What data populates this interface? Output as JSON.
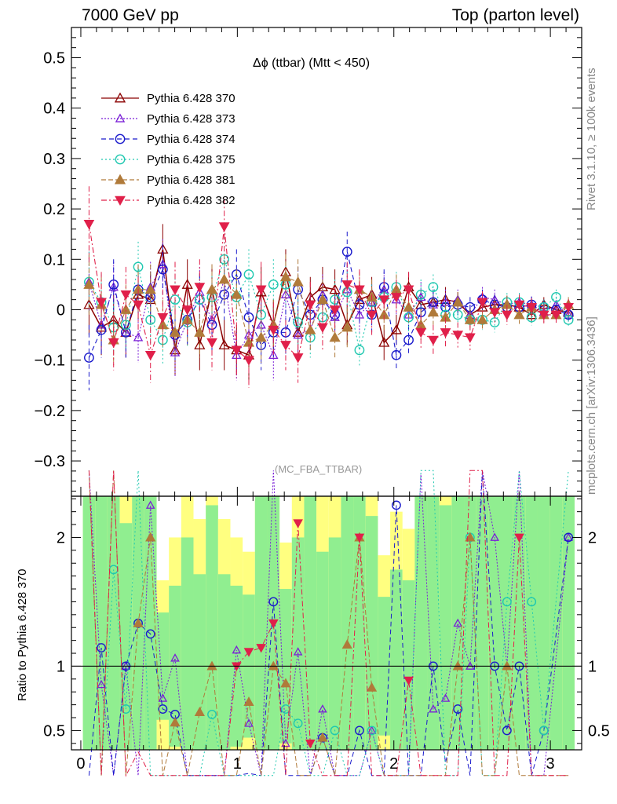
{
  "header": {
    "left": "7000 GeV pp",
    "right": "Top (parton level)"
  },
  "side_labels": {
    "rivet": "Rivet 3.1.10, ≥ 100k events",
    "mcplots": "mcplots.cern.ch [arXiv:1306.3436]"
  },
  "plot_title": "Δϕ (ttbar) (Mtt < 450)",
  "analysis_tag": "(MC_FBA_TTBAR)",
  "ratio_ylabel": "Ratio to Pythia 6.428 370",
  "chart_data": [
    {
      "type": "line",
      "panel": "main",
      "xlim": [
        -0.06,
        3.2
      ],
      "ylim": [
        -0.37,
        0.56
      ],
      "x_ticks": [
        0,
        1,
        2,
        3
      ],
      "y_ticks": [
        -0.3,
        -0.2,
        -0.1,
        0,
        0.1,
        0.2,
        0.3,
        0.4,
        0.5
      ],
      "y_tick_labels": [
        "−0.3",
        "−0.2",
        "−0.1",
        "0",
        "0.1",
        "0.2",
        "0.3",
        "0.4",
        "0.5"
      ],
      "legend_position": "top-left",
      "x": [
        0.0524,
        0.1309,
        0.2094,
        0.288,
        0.3665,
        0.4451,
        0.5236,
        0.6021,
        0.6807,
        0.7592,
        0.8378,
        0.9163,
        0.9948,
        1.0734,
        1.1519,
        1.2305,
        1.309,
        1.3875,
        1.4661,
        1.5446,
        1.6232,
        1.7017,
        1.7802,
        1.8588,
        1.9373,
        2.0159,
        2.0944,
        2.1729,
        2.2515,
        2.33,
        2.4086,
        2.4871,
        2.5656,
        2.6442,
        2.7227,
        2.8013,
        2.8798,
        2.9583,
        3.0369,
        3.1154
      ],
      "series": [
        {
          "name": "Pythia 6.428 370",
          "color": "#8b0000",
          "marker": "triangle-open",
          "values": [
            0.01,
            -0.035,
            -0.02,
            -0.045,
            0.03,
            0.02,
            0.12,
            -0.08,
            0.05,
            -0.07,
            0.04,
            -0.07,
            -0.08,
            -0.09,
            0.035,
            -0.03,
            0.075,
            -0.045,
            0.025,
            0.045,
            0.04,
            -0.03,
            0.02,
            0.03,
            -0.065,
            -0.04,
            0.045,
            0.01,
            0.015,
            0.02,
            0.015,
            -0.01,
            0.005,
            0.01,
            0.01,
            0.005,
            -0.01,
            0.01,
            0.0,
            -0.005
          ],
          "errors": [
            0.06,
            0.055,
            0.05,
            0.05,
            0.05,
            0.05,
            0.05,
            0.05,
            0.05,
            0.05,
            0.05,
            0.05,
            0.05,
            0.05,
            0.05,
            0.05,
            0.045,
            0.045,
            0.04,
            0.04,
            0.04,
            0.04,
            0.035,
            0.035,
            0.035,
            0.03,
            0.03,
            0.03,
            0.025,
            0.025,
            0.02,
            0.02,
            0.02,
            0.02,
            0.018,
            0.018,
            0.016,
            0.015,
            0.015,
            0.015
          ]
        },
        {
          "name": "Pythia 6.428 373",
          "color": "#7a1fd6",
          "marker": "triangle-open-small",
          "values": [
            0.055,
            -0.03,
            0.045,
            -0.045,
            -0.055,
            0.045,
            0.09,
            -0.085,
            -0.02,
            0.035,
            -0.02,
            0.06,
            -0.09,
            -0.05,
            -0.03,
            -0.09,
            0.03,
            -0.05,
            -0.04,
            0.03,
            -0.015,
            0.04,
            -0.01,
            0.015,
            0.04,
            0.02,
            -0.01,
            0.025,
            0.01,
            0.015,
            0.02,
            -0.01,
            0.025,
            0.02,
            0.01,
            0.015,
            0.01,
            -0.005,
            0.01,
            -0.01
          ],
          "errors": [
            0.06,
            0.055,
            0.05,
            0.05,
            0.05,
            0.05,
            0.05,
            0.05,
            0.05,
            0.05,
            0.05,
            0.05,
            0.05,
            0.05,
            0.05,
            0.05,
            0.045,
            0.045,
            0.04,
            0.04,
            0.04,
            0.04,
            0.035,
            0.035,
            0.035,
            0.03,
            0.03,
            0.03,
            0.025,
            0.025,
            0.02,
            0.02,
            0.02,
            0.02,
            0.018,
            0.018,
            0.016,
            0.015,
            0.015,
            0.015
          ]
        },
        {
          "name": "Pythia 6.428 374",
          "color": "#1a1acc",
          "marker": "circle-open",
          "values": [
            -0.095,
            -0.04,
            0.05,
            -0.045,
            0.04,
            0.025,
            0.08,
            -0.05,
            -0.02,
            0.02,
            -0.03,
            0.03,
            0.07,
            -0.015,
            -0.07,
            -0.045,
            -0.045,
            0.04,
            -0.01,
            0.02,
            -0.01,
            0.115,
            0.01,
            -0.01,
            0.045,
            -0.09,
            -0.06,
            -0.005,
            0.015,
            0.005,
            0.01,
            0.005,
            0.02,
            0.01,
            0.005,
            0.005,
            0.01,
            0.005,
            0.0,
            -0.01
          ],
          "errors": [
            0.065,
            0.055,
            0.05,
            0.05,
            0.05,
            0.05,
            0.05,
            0.05,
            0.05,
            0.05,
            0.05,
            0.05,
            0.05,
            0.05,
            0.05,
            0.05,
            0.045,
            0.045,
            0.04,
            0.04,
            0.04,
            0.04,
            0.035,
            0.035,
            0.035,
            0.03,
            0.03,
            0.03,
            0.025,
            0.025,
            0.02,
            0.02,
            0.02,
            0.02,
            0.018,
            0.018,
            0.016,
            0.015,
            0.015,
            0.015
          ]
        },
        {
          "name": "Pythia 6.428 375",
          "color": "#20c8b0",
          "marker": "circle-open",
          "values": [
            0.055,
            0.015,
            -0.035,
            -0.03,
            0.085,
            -0.02,
            -0.06,
            0.02,
            -0.025,
            0.02,
            0.025,
            0.1,
            0.025,
            0.07,
            -0.01,
            0.05,
            0.05,
            -0.025,
            -0.055,
            -0.015,
            0.02,
            0.035,
            -0.08,
            0.015,
            0.025,
            0.045,
            -0.015,
            0.03,
            0.045,
            -0.01,
            -0.01,
            -0.02,
            -0.02,
            -0.025,
            0.015,
            0.015,
            -0.015,
            0.005,
            0.025,
            -0.02
          ],
          "errors": [
            0.06,
            0.055,
            0.05,
            0.05,
            0.05,
            0.05,
            0.05,
            0.05,
            0.05,
            0.05,
            0.05,
            0.05,
            0.05,
            0.05,
            0.05,
            0.05,
            0.045,
            0.045,
            0.04,
            0.04,
            0.04,
            0.04,
            0.035,
            0.035,
            0.035,
            0.03,
            0.03,
            0.03,
            0.025,
            0.025,
            0.02,
            0.02,
            0.02,
            0.02,
            0.018,
            0.018,
            0.016,
            0.015,
            0.015,
            0.015
          ]
        },
        {
          "name": "Pythia 6.428 381",
          "color": "#b07a3a",
          "marker": "triangle-filled",
          "values": [
            0.05,
            0.01,
            -0.06,
            0.0,
            0.04,
            0.04,
            -0.03,
            -0.045,
            -0.02,
            -0.045,
            0.04,
            0.06,
            0.03,
            -0.065,
            -0.055,
            -0.03,
            0.065,
            0.055,
            -0.04,
            0.02,
            -0.055,
            -0.035,
            0.04,
            0.025,
            -0.01,
            0.04,
            0.005,
            -0.03,
            -0.005,
            -0.015,
            0.015,
            -0.02,
            -0.02,
            0.0,
            0.01,
            -0.01,
            0.005,
            -0.01,
            -0.01,
            0.01
          ],
          "errors": [
            0.06,
            0.055,
            0.05,
            0.05,
            0.05,
            0.05,
            0.05,
            0.05,
            0.05,
            0.05,
            0.05,
            0.05,
            0.05,
            0.05,
            0.05,
            0.05,
            0.045,
            0.045,
            0.04,
            0.04,
            0.04,
            0.04,
            0.035,
            0.035,
            0.035,
            0.03,
            0.03,
            0.03,
            0.025,
            0.025,
            0.02,
            0.02,
            0.02,
            0.02,
            0.018,
            0.018,
            0.016,
            0.015,
            0.015,
            0.015
          ]
        },
        {
          "name": "Pythia 6.428 382",
          "color": "#e0204a",
          "marker": "triangle-down-filled",
          "values": [
            0.17,
            0.015,
            -0.065,
            0.03,
            0.01,
            -0.09,
            -0.015,
            0.04,
            0.0,
            0.045,
            -0.065,
            0.165,
            -0.08,
            -0.1,
            0.04,
            -0.04,
            -0.07,
            -0.095,
            0.01,
            -0.035,
            0.0,
            0.05,
            0.04,
            -0.01,
            0.02,
            0.025,
            0.04,
            -0.045,
            -0.06,
            -0.045,
            -0.05,
            -0.055,
            0.015,
            -0.005,
            -0.01,
            0.01,
            0.005,
            -0.01,
            -0.01,
            0.005
          ],
          "errors": [
            0.075,
            0.06,
            0.055,
            0.055,
            0.055,
            0.055,
            0.055,
            0.055,
            0.055,
            0.055,
            0.055,
            0.055,
            0.055,
            0.055,
            0.055,
            0.055,
            0.05,
            0.05,
            0.045,
            0.045,
            0.045,
            0.045,
            0.04,
            0.04,
            0.04,
            0.035,
            0.035,
            0.035,
            0.03,
            0.03,
            0.025,
            0.025,
            0.022,
            0.022,
            0.02,
            0.02,
            0.018,
            0.017,
            0.016,
            0.016
          ]
        }
      ]
    },
    {
      "type": "line",
      "panel": "ratio",
      "ylabel": "Ratio to Pythia 6.428 370",
      "xlim": [
        -0.06,
        3.2
      ],
      "ylim": [
        0.35,
        2.32
      ],
      "x_ticks": [
        0,
        1,
        2,
        3
      ],
      "y_ticks": [
        0.5,
        1,
        2
      ],
      "reference_line": 1,
      "band_colors": {
        "inner": "#90ee90",
        "outer": "#ffff80"
      }
    }
  ]
}
